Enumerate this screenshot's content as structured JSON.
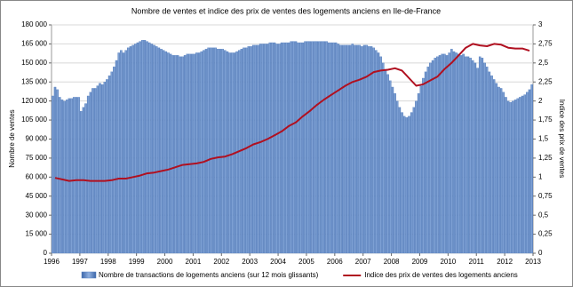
{
  "chart_data": {
    "type": "bar_line",
    "title": "Nombre de ventes et indice des prix de ventes des logements anciens en Ile-de-France",
    "y_label": "Nombre de ventes",
    "y2_label": "Indice des prix de ventes",
    "xlim": [
      1996,
      2013
    ],
    "xticks": [
      1996,
      1997,
      1998,
      1999,
      2000,
      2001,
      2002,
      2003,
      2004,
      2005,
      2006,
      2007,
      2008,
      2009,
      2010,
      2011,
      2012,
      2013
    ],
    "ylim": [
      0,
      180000
    ],
    "yticks": [
      0,
      {
        "value": 15000,
        "label": "15 000"
      },
      {
        "value": 30000,
        "label": "30 000"
      },
      {
        "value": 45000,
        "label": "45 000"
      },
      {
        "value": 60000,
        "label": "60 000"
      },
      {
        "value": 75000,
        "label": "75 000"
      },
      {
        "value": 90000,
        "label": "90 000"
      },
      {
        "value": 105000,
        "label": "105 000"
      },
      {
        "value": 120000,
        "label": "120 000"
      },
      {
        "value": 135000,
        "label": "135 000"
      },
      {
        "value": 150000,
        "label": "150 000"
      },
      {
        "value": 165000,
        "label": "165 000"
      },
      {
        "value": 180000,
        "label": "180 000"
      }
    ],
    "y2lim": [
      0,
      3
    ],
    "y2ticks": [
      0,
      {
        "value": 0.25,
        "label": "0,25"
      },
      {
        "value": 0.5,
        "label": "0,5"
      },
      {
        "value": 0.75,
        "label": "0,75"
      },
      1,
      {
        "value": 1.25,
        "label": "1,25"
      },
      {
        "value": 1.5,
        "label": "1,5"
      },
      {
        "value": 1.75,
        "label": "1,75"
      },
      2,
      {
        "value": 2.25,
        "label": "2,25"
      },
      {
        "value": 2.5,
        "label": "2,5"
      },
      {
        "value": 2.75,
        "label": "2,75"
      },
      3
    ],
    "series": [
      {
        "name": "Nombre de transactions de logements anciens (sur 12 mois glissants)",
        "type": "bar",
        "color": "#5b86c5",
        "values": [
          124000,
          131000,
          129000,
          123000,
          121000,
          120000,
          121000,
          122000,
          122000,
          123000,
          123000,
          123000,
          112000,
          115000,
          118000,
          124000,
          127000,
          130000,
          130000,
          132000,
          134000,
          133000,
          135000,
          137000,
          140000,
          143000,
          147000,
          152000,
          158000,
          160000,
          158000,
          160000,
          162000,
          163000,
          164000,
          165000,
          166000,
          167000,
          168000,
          168000,
          167000,
          166000,
          165000,
          164000,
          163000,
          162000,
          161000,
          160000,
          159000,
          158000,
          157000,
          156000,
          156000,
          156000,
          155000,
          155000,
          156000,
          157000,
          157000,
          157000,
          157000,
          158000,
          158000,
          159000,
          160000,
          161000,
          162000,
          162000,
          162000,
          162000,
          161000,
          161000,
          161000,
          160000,
          159000,
          158000,
          158000,
          158000,
          159000,
          160000,
          161000,
          162000,
          162000,
          163000,
          163000,
          164000,
          164000,
          164000,
          165000,
          165000,
          165000,
          165000,
          166000,
          166000,
          166000,
          165000,
          165000,
          166000,
          166000,
          166000,
          166000,
          167000,
          167000,
          167000,
          166000,
          166000,
          166000,
          167000,
          167000,
          167000,
          167000,
          167000,
          167000,
          167000,
          167000,
          167000,
          167000,
          166000,
          166000,
          166000,
          166000,
          165000,
          164000,
          164000,
          164000,
          164000,
          164000,
          165000,
          164000,
          164000,
          164000,
          163000,
          164000,
          164000,
          163000,
          163000,
          162000,
          160000,
          158000,
          155000,
          150000,
          145000,
          141000,
          136000,
          131000,
          126000,
          120000,
          115000,
          111000,
          108000,
          107000,
          108000,
          111000,
          115000,
          120000,
          126000,
          132000,
          138000,
          143000,
          147000,
          150000,
          152000,
          154000,
          155000,
          156000,
          157000,
          157000,
          156000,
          158000,
          161000,
          159000,
          158000,
          157000,
          156000,
          157000,
          155000,
          155000,
          154000,
          152000,
          150000,
          146000,
          155000,
          154000,
          150000,
          147000,
          143000,
          140000,
          137000,
          134000,
          131000,
          130000,
          127000,
          123000,
          120000,
          119000,
          120000,
          121000,
          122000,
          123000,
          124000,
          125000,
          127000,
          129000,
          133000
        ]
      },
      {
        "name": "Indice des prix de ventes des logements anciens",
        "type": "line",
        "color": "#b01020",
        "axis": "y2",
        "values": [
          0.99,
          0.97,
          0.95,
          0.96,
          0.96,
          0.95,
          0.95,
          0.95,
          0.96,
          0.98,
          0.98,
          1.0,
          1.02,
          1.05,
          1.06,
          1.08,
          1.1,
          1.13,
          1.16,
          1.17,
          1.18,
          1.2,
          1.24,
          1.26,
          1.27,
          1.3,
          1.34,
          1.38,
          1.43,
          1.46,
          1.5,
          1.55,
          1.6,
          1.67,
          1.72,
          1.8,
          1.87,
          1.95,
          2.02,
          2.08,
          2.14,
          2.2,
          2.25,
          2.28,
          2.32,
          2.38,
          2.4,
          2.41,
          2.43,
          2.4,
          2.3,
          2.2,
          2.22,
          2.27,
          2.32,
          2.42,
          2.5,
          2.6,
          2.7,
          2.75,
          2.73,
          2.72,
          2.75,
          2.74,
          2.7,
          2.69,
          2.69,
          2.66
        ]
      }
    ]
  }
}
